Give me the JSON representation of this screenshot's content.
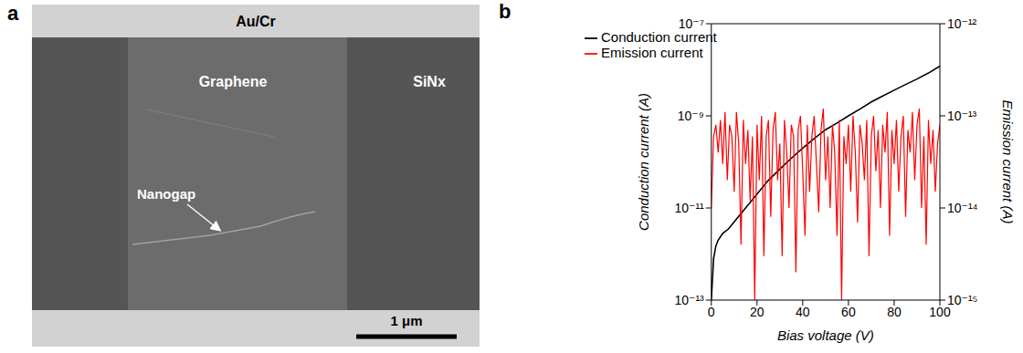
{
  "image": {
    "panel_label": "a",
    "labels": {
      "electrode": "Au/Cr",
      "graphene": "Graphene",
      "substrate": "SiNx",
      "nanogap": "Nanogap"
    },
    "scale_bar": "1 μm"
  },
  "chart_data": {
    "type": "line",
    "panel_label": "b",
    "x_label": "Bias voltage (V)",
    "y_label": "Conduction current (A)",
    "y2_label": "Emission current (A)",
    "xlim": [
      0,
      100
    ],
    "xticks": [
      0,
      20,
      40,
      60,
      80,
      100
    ],
    "ylim": [
      1e-13,
      1e-07
    ],
    "yticks": [
      {
        "value": 1e-13,
        "label": "10⁻¹³"
      },
      {
        "value": 1e-11,
        "label": "10⁻¹¹"
      },
      {
        "value": 1e-09,
        "label": "10⁻⁹"
      },
      {
        "value": 1e-07,
        "label": "10⁻⁷"
      }
    ],
    "y2lim": [
      1e-15,
      1e-12
    ],
    "y2ticks": [
      {
        "value": 1e-15,
        "label": "10⁻¹⁵"
      },
      {
        "value": 1e-14,
        "label": "10⁻¹⁴"
      },
      {
        "value": 1e-13,
        "label": "10⁻¹³"
      },
      {
        "value": 1e-12,
        "label": "10⁻¹²"
      }
    ],
    "log": "y",
    "legend": "upper left",
    "series": [
      {
        "name": "Conduction current",
        "color": "#000000",
        "x": [
          0,
          1,
          2,
          3,
          5,
          7.5,
          10,
          15,
          20,
          25,
          30,
          35,
          40,
          45,
          50,
          55,
          60,
          65,
          70,
          75,
          80,
          85,
          90,
          95,
          100
        ],
        "values": [
          1e-13,
          8e-13,
          1.5e-12,
          2e-12,
          2.8e-12,
          3.5e-12,
          5e-12,
          1e-11,
          2e-11,
          4e-11,
          7e-11,
          1.2e-10,
          2e-10,
          3.2e-10,
          5e-10,
          7e-10,
          1e-09,
          1.4e-09,
          2e-09,
          2.7e-09,
          3.6e-09,
          4.8e-09,
          6.3e-09,
          8.5e-09,
          1.2e-08
        ]
      },
      {
        "name": "Emission current",
        "color": "#ff0000",
        "axis": "y2",
        "x": [
          0,
          1,
          2,
          3,
          4,
          5,
          6,
          7,
          8,
          9,
          10,
          11,
          12,
          13,
          14,
          15,
          16,
          17,
          18,
          19,
          20,
          21,
          22,
          23,
          24,
          25,
          26,
          27,
          28,
          29,
          30,
          31,
          32,
          33,
          34,
          35,
          36,
          37,
          38,
          39,
          40,
          41,
          42,
          43,
          44,
          45,
          46,
          47,
          48,
          49,
          50,
          51,
          52,
          53,
          54,
          55,
          56,
          57,
          58,
          59,
          60,
          61,
          62,
          63,
          64,
          65,
          66,
          67,
          68,
          69,
          70,
          71,
          72,
          73,
          74,
          75,
          76,
          77,
          78,
          79,
          80,
          81,
          82,
          83,
          84,
          85,
          86,
          87,
          88,
          89,
          90,
          91,
          92,
          93,
          94,
          95,
          96,
          97,
          98,
          99,
          100
        ],
        "values": [
          1e-14,
          6e-14,
          8e-14,
          4e-14,
          9e-14,
          3e-14,
          1.1e-13,
          2e-14,
          8e-14,
          6e-14,
          1.5e-14,
          1.1e-13,
          5e-14,
          4e-15,
          9e-14,
          3e-14,
          7e-14,
          1.2e-14,
          6e-14,
          1e-15,
          8e-14,
          2e-14,
          1e-13,
          3e-15,
          6e-14,
          9e-14,
          8e-15,
          7e-14,
          1.1e-13,
          2e-14,
          5e-14,
          3e-15,
          9e-14,
          4e-14,
          1e-14,
          8e-14,
          6e-14,
          2e-15,
          7e-14,
          1e-13,
          2.5e-14,
          5e-15,
          8e-14,
          1.5e-14,
          6e-14,
          1e-13,
          3e-14,
          9e-15,
          7e-14,
          1.2e-13,
          2e-14,
          6e-14,
          1e-14,
          8e-14,
          4e-14,
          5e-15,
          9e-14,
          1e-15,
          6e-14,
          3e-14,
          8e-14,
          1.5e-14,
          1e-13,
          4e-14,
          7e-15,
          8e-14,
          5e-14,
          2e-14,
          9e-14,
          3e-15,
          6e-14,
          1e-13,
          2.5e-14,
          7e-14,
          1e-14,
          8e-14,
          4e-14,
          1.1e-13,
          5e-15,
          7e-14,
          3e-14,
          9e-14,
          1.5e-14,
          6e-14,
          1e-13,
          8e-15,
          7e-14,
          4e-14,
          1.1e-13,
          2e-14,
          8e-14,
          1.2e-13,
          1e-14,
          6e-14,
          4e-15,
          9e-14,
          3e-14,
          7e-14,
          1.5e-14,
          5e-14,
          8e-14
        ]
      }
    ]
  }
}
